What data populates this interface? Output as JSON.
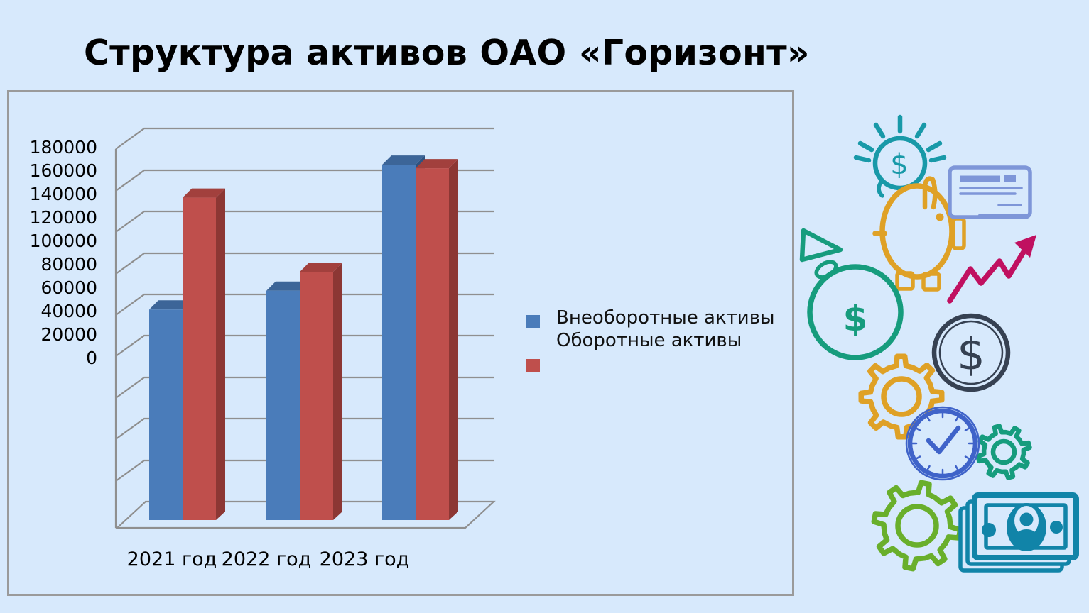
{
  "title": "Структура активов ОАО «Горизонт»",
  "chart_data": {
    "type": "bar",
    "projection": "3d",
    "title": "Структура активов ОАО «Горизонт»",
    "categories": [
      "2021 год",
      "2022 год",
      "2023 год"
    ],
    "series": [
      {
        "name": "Внеоборотные активы",
        "color": "#4a7cba",
        "values": [
          42000,
          58000,
          165000
        ]
      },
      {
        "name": "Оборотные активы",
        "color": "#bf4f4c",
        "values": [
          137000,
          74000,
          162000
        ]
      }
    ],
    "yticks": [
      180000,
      160000,
      140000,
      120000,
      100000,
      80000,
      60000,
      40000,
      20000,
      0
    ],
    "ylim": [
      0,
      180000
    ],
    "ytick_step": 20000,
    "grid": true,
    "legend_position": "right"
  },
  "icons": {
    "currency_symbol": "$"
  },
  "palette": {
    "page_bg": "#d7e9fc",
    "panel_border": "#9a9a9a",
    "grid_line": "#8f8f8f",
    "text": "#000000",
    "bar_blue": "#4a7cba",
    "bar_blue_top": "#3c6598",
    "bar_blue_side": "#2f5380",
    "bar_red": "#bf4f4c",
    "bar_red_top": "#a2403d",
    "bar_red_side": "#8c3734",
    "teal": "#1899a8",
    "amber": "#dfa126",
    "periwinkle": "#7e96d8",
    "magenta": "#c01060",
    "green_teal": "#169c7d",
    "navy": "#364152",
    "clock_blue": "#3f63c9",
    "lime": "#69af2b",
    "note_teal": "#1184a8"
  }
}
